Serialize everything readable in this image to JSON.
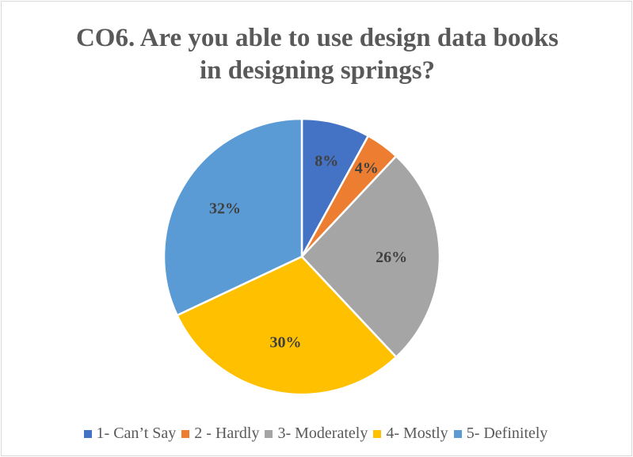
{
  "chart_data": {
    "type": "pie",
    "title": [
      "CO6. Are you able to use design data books",
      "in designing springs?"
    ],
    "categories": [
      "1- Can’t Say",
      "2 - Hardly",
      "3- Moderately",
      "4- Mostly",
      "5- Definitely"
    ],
    "values": [
      8,
      4,
      26,
      30,
      32
    ],
    "labels": [
      "8%",
      "4%",
      "26%",
      "30%",
      "32%"
    ],
    "colors": [
      "#4472c4",
      "#ed7d31",
      "#a5a5a5",
      "#ffc000",
      "#5b9bd5"
    ],
    "start_angle": "12 o'clock",
    "direction": "clockwise",
    "legend_position": "bottom"
  }
}
